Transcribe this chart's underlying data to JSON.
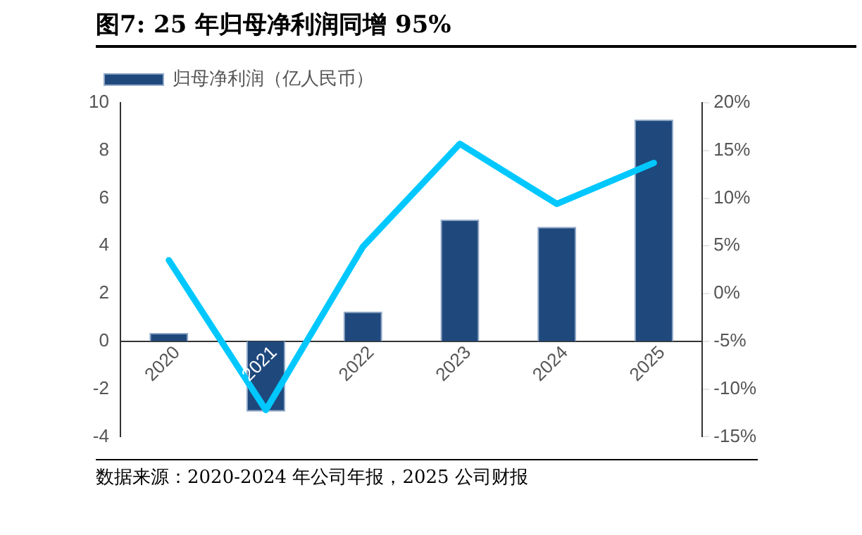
{
  "chart_data": {
    "type": "bar",
    "title": "图7:  25 年归母净利润同增 95%",
    "categories": [
      "2020",
      "2021",
      "2022",
      "2023",
      "2024",
      "2025"
    ],
    "series": [
      {
        "name": "归母净利润（亿人民币）",
        "color": "#1f497d",
        "values": [
          0.35,
          -2.95,
          1.25,
          5.1,
          4.8,
          9.3
        ]
      },
      {
        "type": "line",
        "axis": "y2",
        "color": "#00c8ff",
        "values": [
          3.5,
          -12.2,
          4.9,
          15.7,
          9.4,
          13.7
        ]
      }
    ],
    "ylim": [
      -4,
      10
    ],
    "yticks": [
      -4,
      -2,
      0,
      2,
      4,
      6,
      8,
      10
    ],
    "y2lim": [
      -15,
      20
    ],
    "y2ticks": [
      {
        "value": -15,
        "label": "-15%"
      },
      {
        "value": -10,
        "label": "-10%"
      },
      {
        "value": -5,
        "label": "-5%"
      },
      {
        "value": 0,
        "label": "0%"
      },
      {
        "value": 5,
        "label": "5%"
      },
      {
        "value": 10,
        "label": "10%"
      },
      {
        "value": 15,
        "label": "15%"
      },
      {
        "value": 20,
        "label": "20%"
      }
    ],
    "legend": "top",
    "grid": false,
    "marker": "none",
    "line_style": "solid",
    "annotations": [
      "数据来源：2020-2024 年公司年报，2025 公司财报"
    ]
  }
}
